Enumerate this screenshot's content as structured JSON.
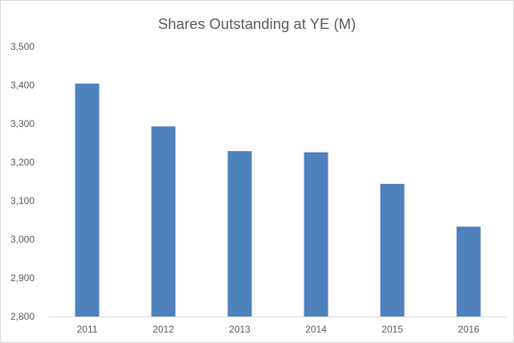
{
  "chart_data": {
    "type": "bar",
    "title": "Shares Outstanding at YE (M)",
    "xlabel": "",
    "ylabel": "",
    "categories": [
      "2011",
      "2012",
      "2013",
      "2014",
      "2015",
      "2016"
    ],
    "values": [
      3404,
      3293,
      3229,
      3226,
      3144,
      3033
    ],
    "ylim": [
      2800,
      3500
    ],
    "yticks": [
      2800,
      2900,
      3000,
      3100,
      3200,
      3300,
      3400,
      3500
    ],
    "ytick_labels": [
      "2,800",
      "2,900",
      "3,000",
      "3,100",
      "3,200",
      "3,300",
      "3,400",
      "3,500"
    ],
    "bar_color": "#4f81bd",
    "grid": false,
    "legend": "none"
  }
}
